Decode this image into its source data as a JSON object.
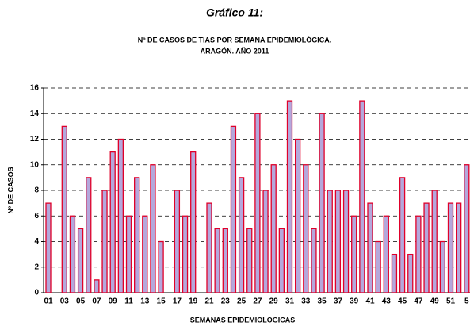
{
  "chart_data": {
    "type": "bar",
    "title": "Gráfico 11:",
    "subtitle": [
      "Nº DE CASOS DE TIAS POR SEMANA EPIDEMIOLÓGICA.",
      "ARAGÓN. AÑO 2011"
    ],
    "x_label": "SEMANAS EPIDEMIOLOGICAS",
    "y_label": "Nº DE CASOS",
    "categories": [
      "01",
      null,
      "03",
      null,
      "05",
      null,
      "07",
      null,
      "09",
      null,
      "11",
      null,
      "13",
      null,
      "15",
      null,
      "17",
      null,
      "19",
      null,
      "21",
      null,
      "23",
      null,
      "25",
      null,
      "27",
      null,
      "29",
      null,
      "31",
      null,
      "33",
      null,
      "35",
      null,
      "37",
      null,
      "39",
      null,
      "41",
      null,
      "43",
      null,
      "45",
      null,
      "47",
      null,
      "49",
      null,
      "51",
      null,
      "5"
    ],
    "values": [
      7,
      0,
      13,
      6,
      5,
      9,
      1,
      8,
      11,
      12,
      6,
      9,
      6,
      10,
      4,
      0,
      8,
      6,
      11,
      0,
      7,
      5,
      5,
      13,
      9,
      5,
      14,
      8,
      10,
      5,
      15,
      12,
      10,
      5,
      14,
      8,
      8,
      8,
      6,
      15,
      7,
      4,
      6,
      3,
      9,
      3,
      6,
      7,
      8,
      4,
      7,
      7,
      10
    ],
    "color": "#b4a8dc",
    "edge_color": "#e0002a",
    "ylim": [
      0,
      16
    ],
    "yticks": [
      0,
      2,
      4,
      6,
      8,
      10,
      12,
      14,
      16
    ],
    "grid": true
  }
}
